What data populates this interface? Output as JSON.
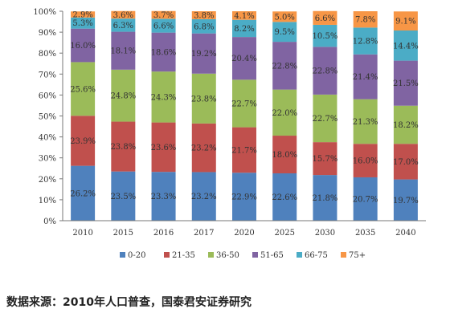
{
  "chart_data": {
    "type": "bar",
    "stacked": true,
    "categories": [
      "2010",
      "2015",
      "2016",
      "2017",
      "2020",
      "2025",
      "2030",
      "2035",
      "2040"
    ],
    "series": [
      {
        "name": "0-20",
        "color": "#4f81bd",
        "values": [
          26.2,
          23.5,
          23.3,
          23.2,
          22.9,
          22.6,
          21.8,
          20.7,
          19.7
        ]
      },
      {
        "name": "21-35",
        "color": "#c0504d",
        "values": [
          23.9,
          23.8,
          23.6,
          23.2,
          21.7,
          18.0,
          15.7,
          16.0,
          17.0
        ]
      },
      {
        "name": "36-50",
        "color": "#9bbb59",
        "values": [
          25.6,
          24.8,
          24.3,
          23.8,
          22.7,
          22.0,
          22.7,
          21.3,
          18.2
        ]
      },
      {
        "name": "51-65",
        "color": "#8064a2",
        "values": [
          16.0,
          18.1,
          18.6,
          19.2,
          20.4,
          22.8,
          22.8,
          21.4,
          21.5
        ]
      },
      {
        "name": "66-75",
        "color": "#4bacc6",
        "values": [
          5.3,
          6.3,
          6.6,
          6.8,
          8.2,
          9.5,
          10.5,
          12.8,
          14.4
        ]
      },
      {
        "name": "75+",
        "color": "#f79646",
        "values": [
          2.9,
          3.6,
          3.7,
          3.8,
          4.1,
          5.0,
          6.6,
          7.8,
          9.1
        ]
      }
    ],
    "ylim": [
      0,
      100
    ],
    "yticks": [
      "0%",
      "10%",
      "20%",
      "30%",
      "40%",
      "50%",
      "60%",
      "70%",
      "80%",
      "90%",
      "100%"
    ],
    "legend_position": "bottom"
  },
  "source_text": "数据来源：2010年人口普查，国泰君安证券研究"
}
